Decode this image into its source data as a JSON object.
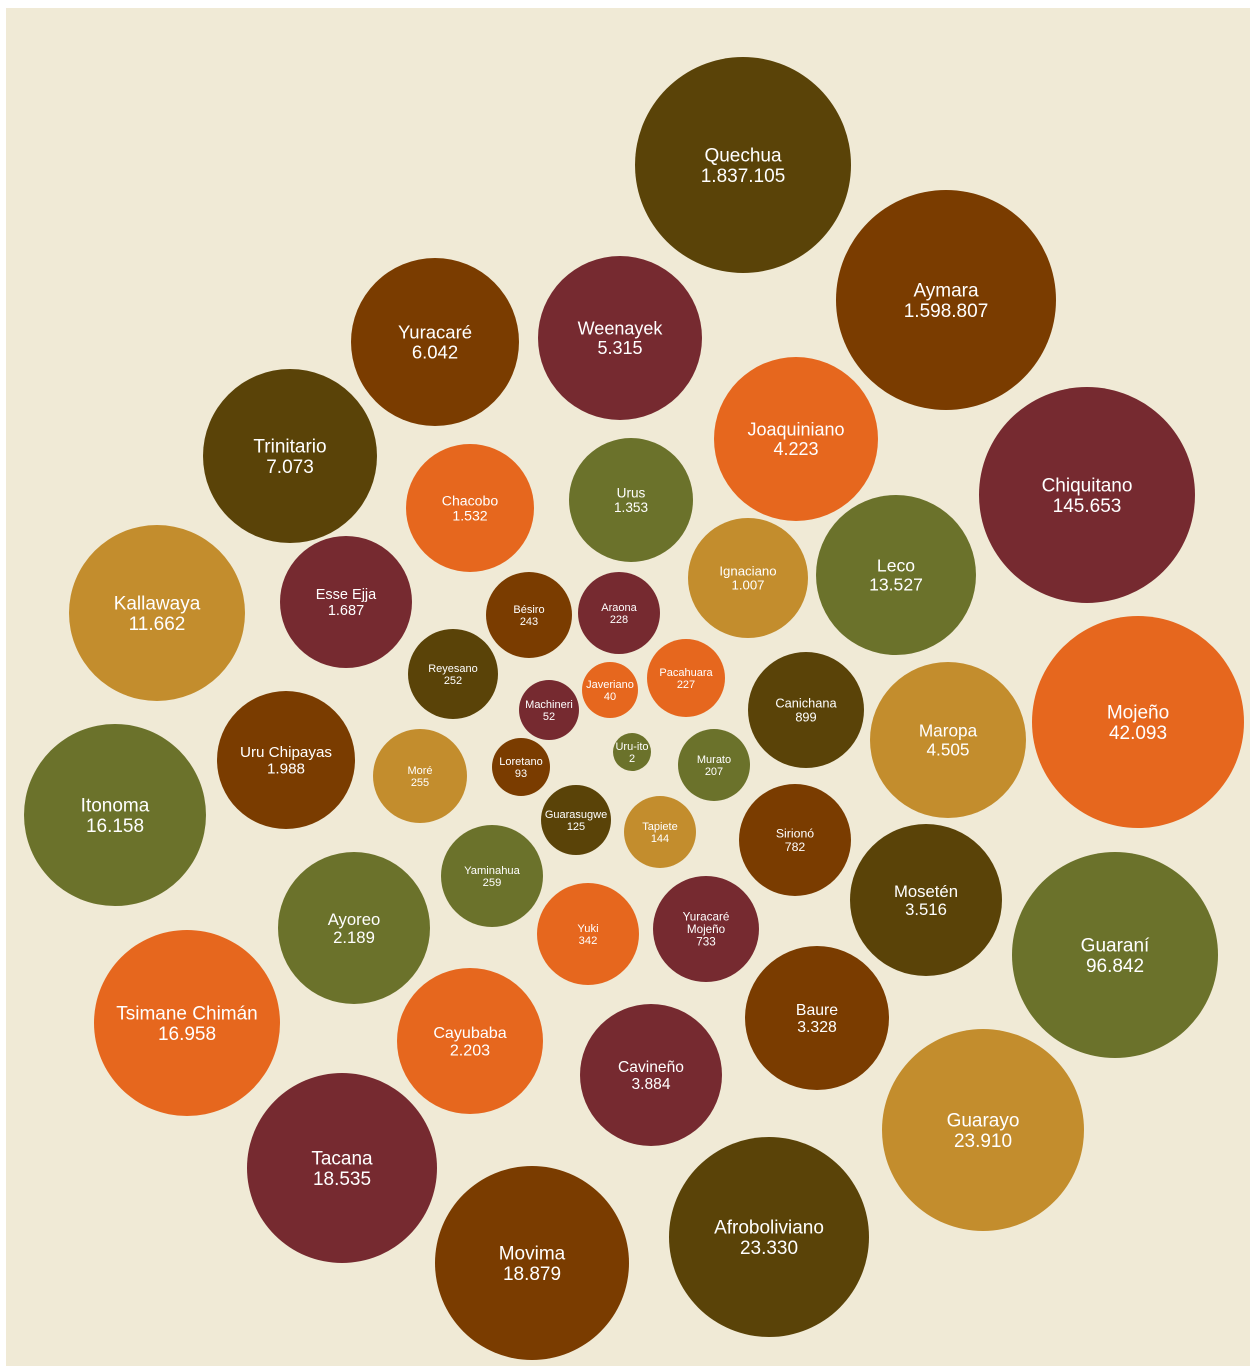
{
  "colors": {
    "background": "#f0ead6",
    "olive-dark": "#5a4308",
    "brown": "#7a3c00",
    "maroon": "#762a30",
    "orange": "#e6671e",
    "gold": "#c38d2d",
    "olive-green": "#6b722b"
  },
  "chart_data": {
    "type": "bubble",
    "title": "",
    "legend": "none",
    "grid": false,
    "value_format": "dot-thousands",
    "items": [
      {
        "name": "Quechua",
        "value": 1837105,
        "color": "olive-dark"
      },
      {
        "name": "Aymara",
        "value": 1598807,
        "color": "brown"
      },
      {
        "name": "Chiquitano",
        "value": 145653,
        "color": "maroon"
      },
      {
        "name": "Guaraní",
        "value": 96842,
        "color": "olive-green"
      },
      {
        "name": "Mojeño",
        "value": 42093,
        "color": "orange"
      },
      {
        "name": "Guarayo",
        "value": 23910,
        "color": "gold"
      },
      {
        "name": "Afroboliviano",
        "value": 23330,
        "color": "olive-dark"
      },
      {
        "name": "Movima",
        "value": 18879,
        "color": "brown"
      },
      {
        "name": "Tacana",
        "value": 18535,
        "color": "maroon"
      },
      {
        "name": "Tsimane Chimán",
        "value": 16958,
        "color": "orange"
      },
      {
        "name": "Itonoma",
        "value": 16158,
        "color": "olive-green"
      },
      {
        "name": "Leco",
        "value": 13527,
        "color": "olive-green"
      },
      {
        "name": "Kallawaya",
        "value": 11662,
        "color": "gold"
      },
      {
        "name": "Trinitario",
        "value": 7073,
        "color": "olive-dark"
      },
      {
        "name": "Yuracaré",
        "value": 6042,
        "color": "brown"
      },
      {
        "name": "Weenayek",
        "value": 5315,
        "color": "maroon"
      },
      {
        "name": "Maropa",
        "value": 4505,
        "color": "gold"
      },
      {
        "name": "Joaquiniano",
        "value": 4223,
        "color": "orange"
      },
      {
        "name": "Cavineño",
        "value": 3884,
        "color": "maroon"
      },
      {
        "name": "Mosetén",
        "value": 3516,
        "color": "olive-dark"
      },
      {
        "name": "Baure",
        "value": 3328,
        "color": "brown"
      },
      {
        "name": "Cayubaba",
        "value": 2203,
        "color": "orange"
      },
      {
        "name": "Ayoreo",
        "value": 2189,
        "color": "olive-green"
      },
      {
        "name": "Uru Chipayas",
        "value": 1988,
        "color": "brown"
      },
      {
        "name": "Esse Ejja",
        "value": 1687,
        "color": "maroon"
      },
      {
        "name": "Chacobo",
        "value": 1532,
        "color": "orange"
      },
      {
        "name": "Urus",
        "value": 1353,
        "color": "olive-green"
      },
      {
        "name": "Ignaciano",
        "value": 1007,
        "color": "gold"
      },
      {
        "name": "Canichana",
        "value": 899,
        "color": "olive-dark"
      },
      {
        "name": "Sirionó",
        "value": 782,
        "color": "brown"
      },
      {
        "name": "Yuracaré Mojeño",
        "value": 733,
        "color": "maroon"
      },
      {
        "name": "Yuki",
        "value": 342,
        "color": "orange"
      },
      {
        "name": "Yaminahua",
        "value": 259,
        "color": "olive-green"
      },
      {
        "name": "Moré",
        "value": 255,
        "color": "gold"
      },
      {
        "name": "Reyesano",
        "value": 252,
        "color": "olive-dark"
      },
      {
        "name": "Bésiro",
        "value": 243,
        "color": "brown"
      },
      {
        "name": "Araona",
        "value": 228,
        "color": "maroon"
      },
      {
        "name": "Pacahuara",
        "value": 227,
        "color": "orange"
      },
      {
        "name": "Murato",
        "value": 207,
        "color": "olive-green"
      },
      {
        "name": "Tapiete",
        "value": 144,
        "color": "gold"
      },
      {
        "name": "Guarasugwe",
        "value": 125,
        "color": "olive-dark"
      },
      {
        "name": "Loretano",
        "value": 93,
        "color": "brown"
      },
      {
        "name": "Machineri",
        "value": 52,
        "color": "maroon"
      },
      {
        "name": "Javeriano",
        "value": 40,
        "color": "orange"
      },
      {
        "name": "Uru-ito",
        "value": 2,
        "color": "olive-green"
      }
    ]
  }
}
